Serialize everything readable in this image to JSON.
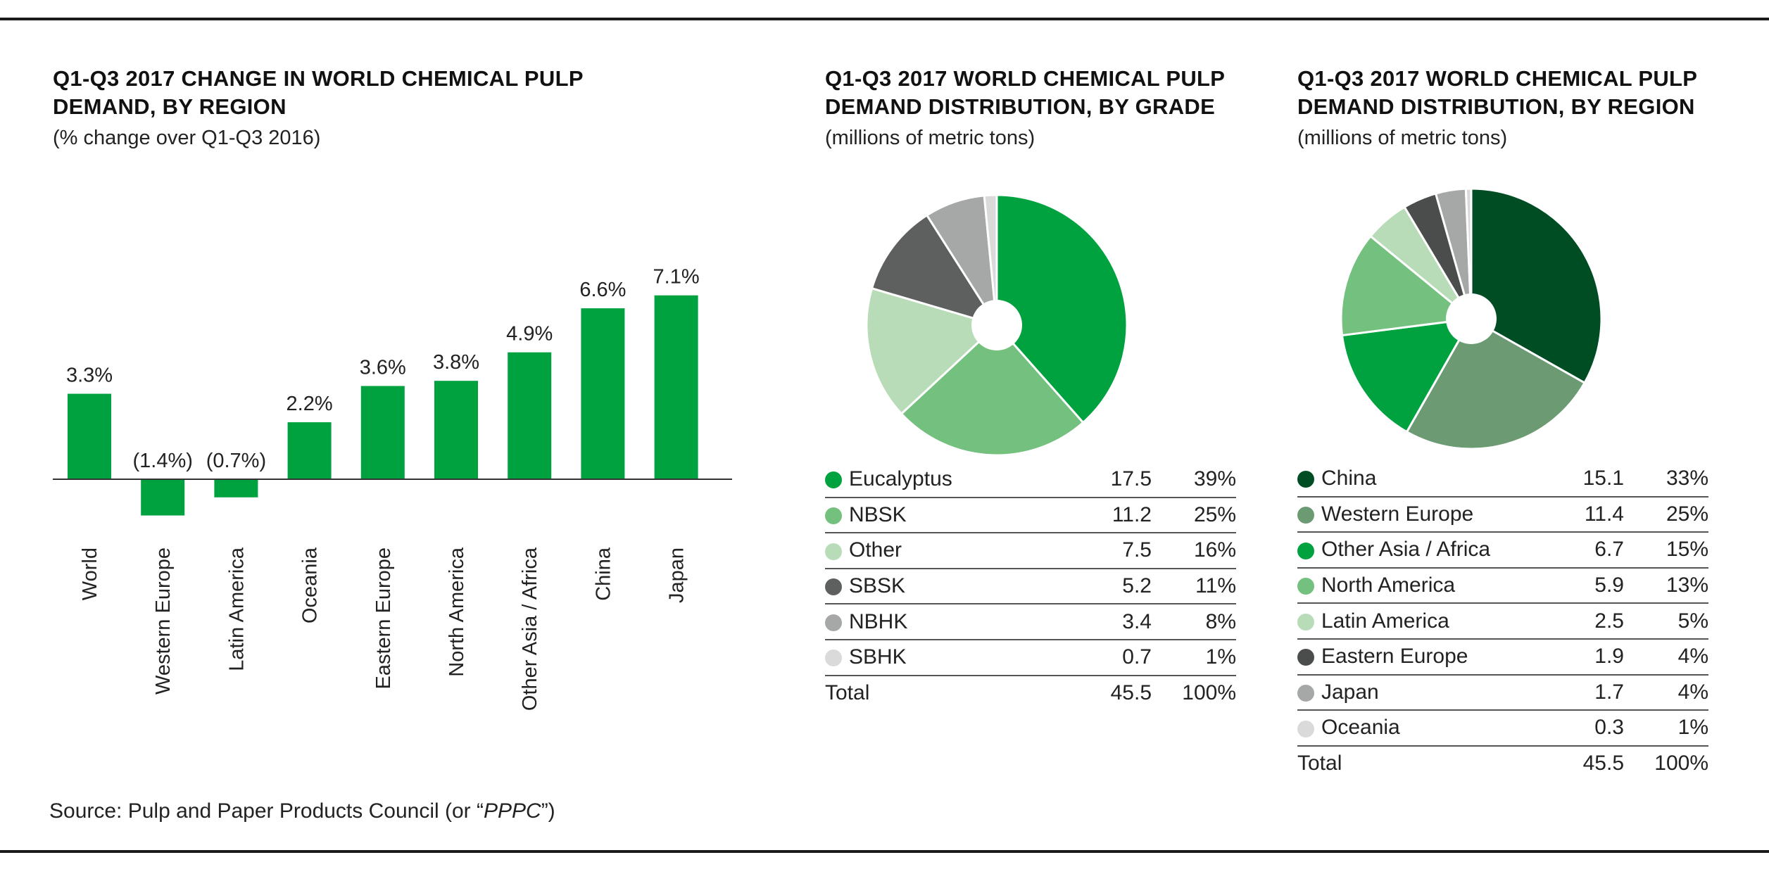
{
  "source": {
    "prefix": "Source: Pulp and Paper Products Council (or “",
    "abbr": "PPPC",
    "suffix": "”)"
  },
  "chart_data": [
    {
      "type": "bar",
      "title": "Q1-Q3 2017 CHANGE IN WORLD CHEMICAL PULP DEMAND, BY REGION",
      "title_lines": [
        "Q1-Q3 2017 CHANGE IN WORLD CHEMICAL PULP",
        "DEMAND, BY REGION"
      ],
      "subtitle": "(% change over Q1-Q3 2016)",
      "categories": [
        "World",
        "Western Europe",
        "Latin America",
        "Oceania",
        "Eastern Europe",
        "North America",
        "Other Asia / Africa",
        "China",
        "Japan"
      ],
      "values": [
        3.3,
        -1.4,
        -0.7,
        2.2,
        3.6,
        3.8,
        4.9,
        6.6,
        7.1
      ],
      "data_labels": [
        "3.3%",
        "(1.4%)",
        "(0.7%)",
        "2.2%",
        "3.6%",
        "3.8%",
        "4.9%",
        "6.6%",
        "7.1%"
      ],
      "color": "#00a23f",
      "ylim": [
        -1.4,
        7.1
      ],
      "grid": false
    },
    {
      "type": "pie",
      "title": "Q1-Q3 2017 WORLD CHEMICAL PULP DEMAND DISTRIBUTION, BY GRADE",
      "title_lines": [
        "Q1-Q3 2017 WORLD CHEMICAL PULP",
        "DEMAND DISTRIBUTION, BY GRADE"
      ],
      "subtitle": "(millions of metric tons)",
      "slices": [
        {
          "label": "Eucalyptus",
          "value": 17.5,
          "pct": "39%",
          "color": "#00a23f"
        },
        {
          "label": "NBSK",
          "value": 11.2,
          "pct": "25%",
          "color": "#74c17f"
        },
        {
          "label": "Other",
          "value": 7.5,
          "pct": "16%",
          "color": "#b9dcb8"
        },
        {
          "label": "SBSK",
          "value": 5.2,
          "pct": "11%",
          "color": "#5e605f"
        },
        {
          "label": "NBHK",
          "value": 3.4,
          "pct": "8%",
          "color": "#a6a8a7"
        },
        {
          "label": "SBHK",
          "value": 0.7,
          "pct": "1%",
          "color": "#d9dad9"
        }
      ],
      "total": {
        "label": "Total",
        "value": "45.5",
        "pct": "100%"
      }
    },
    {
      "type": "pie",
      "title": "Q1-Q3 2017 WORLD CHEMICAL PULP DEMAND DISTRIBUTION, BY REGION",
      "title_lines": [
        "Q1-Q3 2017 WORLD CHEMICAL PULP",
        "DEMAND DISTRIBUTION, BY REGION"
      ],
      "subtitle": "(millions of metric tons)",
      "slices": [
        {
          "label": "China",
          "value": 15.1,
          "pct": "33%",
          "color": "#004d24"
        },
        {
          "label": "Western Europe",
          "value": 11.4,
          "pct": "25%",
          "color": "#6c9a72"
        },
        {
          "label": "Other Asia / Africa",
          "value": 6.7,
          "pct": "15%",
          "color": "#00a23f"
        },
        {
          "label": "North America",
          "value": 5.9,
          "pct": "13%",
          "color": "#74c17f"
        },
        {
          "label": "Latin America",
          "value": 2.5,
          "pct": "5%",
          "color": "#b9dcb8"
        },
        {
          "label": "Eastern Europe",
          "value": 1.9,
          "pct": "4%",
          "color": "#4b4d4c"
        },
        {
          "label": "Japan",
          "value": 1.7,
          "pct": "4%",
          "color": "#a6a8a7"
        },
        {
          "label": "Oceania",
          "value": 0.3,
          "pct": "1%",
          "color": "#d9dad9"
        }
      ],
      "total": {
        "label": "Total",
        "value": "45.5",
        "pct": "100%"
      }
    }
  ]
}
